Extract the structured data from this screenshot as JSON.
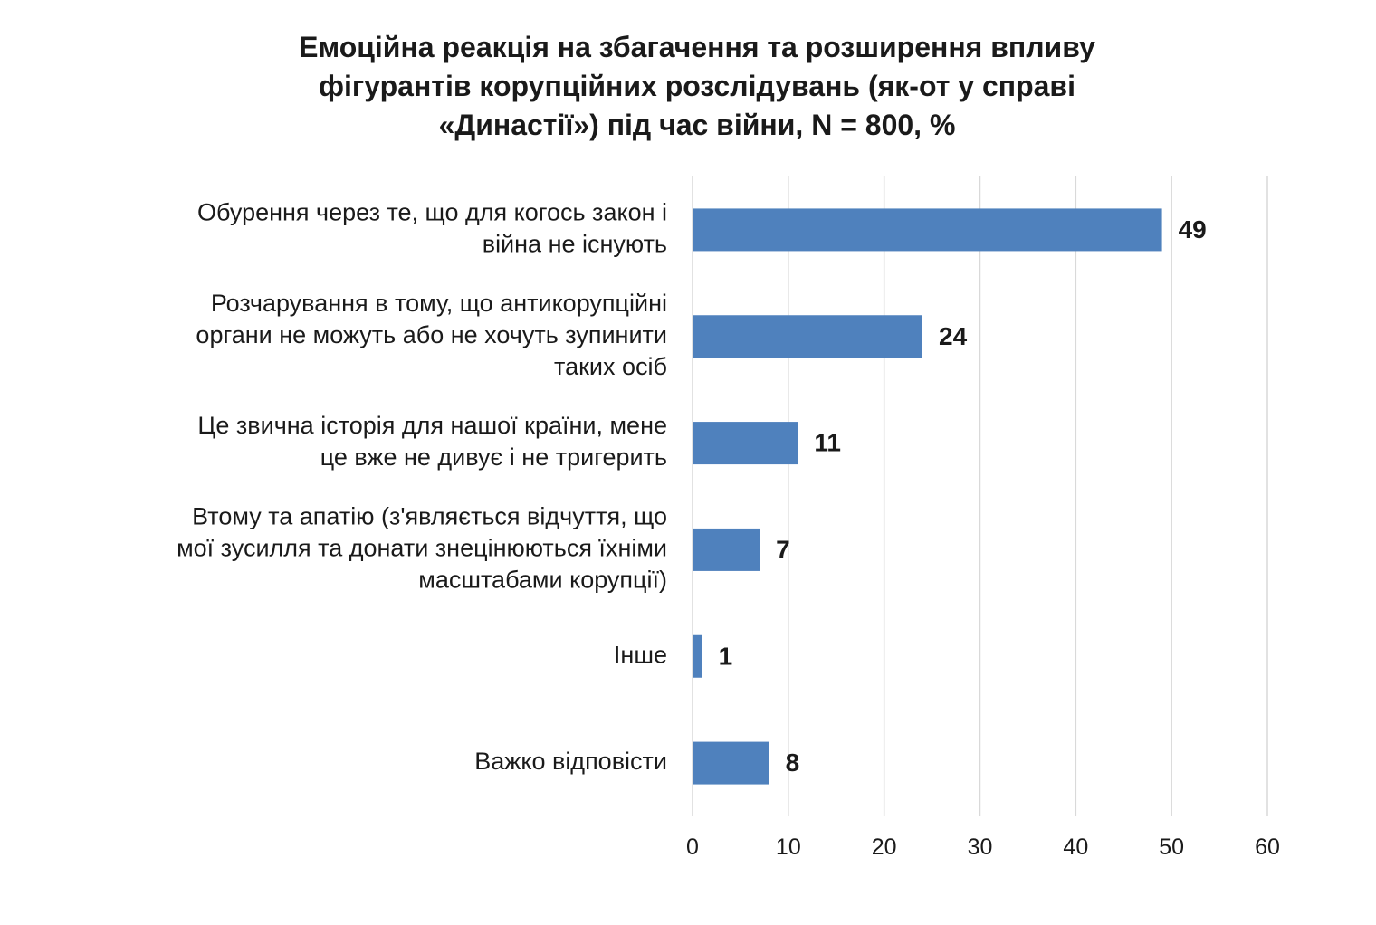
{
  "chart_data": {
    "type": "bar",
    "orientation": "horizontal",
    "title": "Емоційна реакція на збагачення та розширення впливу\nфігурантів корупційних розслідувань (як-от у справі\n«Династії») під час війни, N = 800, %",
    "categories": [
      "Обурення через те, що для когось закон і\nвійна не існують",
      "Розчарування в тому, що антикорупційні\nоргани не можуть або не хочуть зупинити\nтаких осіб",
      "Це звична історія для нашої країни, мене\nце вже не дивує і не тригерить",
      "Втому та апатію (з'являється відчуття, що\nмої зусилля та донати знецінюються їхніми\nмасштабами корупції)",
      "Інше",
      "Важко відповісти"
    ],
    "values": [
      49,
      24,
      11,
      7,
      1,
      8
    ],
    "color": "#4f81bd",
    "xlim": [
      0,
      60
    ],
    "xticks": [
      0,
      10,
      20,
      30,
      40,
      50,
      60
    ],
    "grid": true
  }
}
